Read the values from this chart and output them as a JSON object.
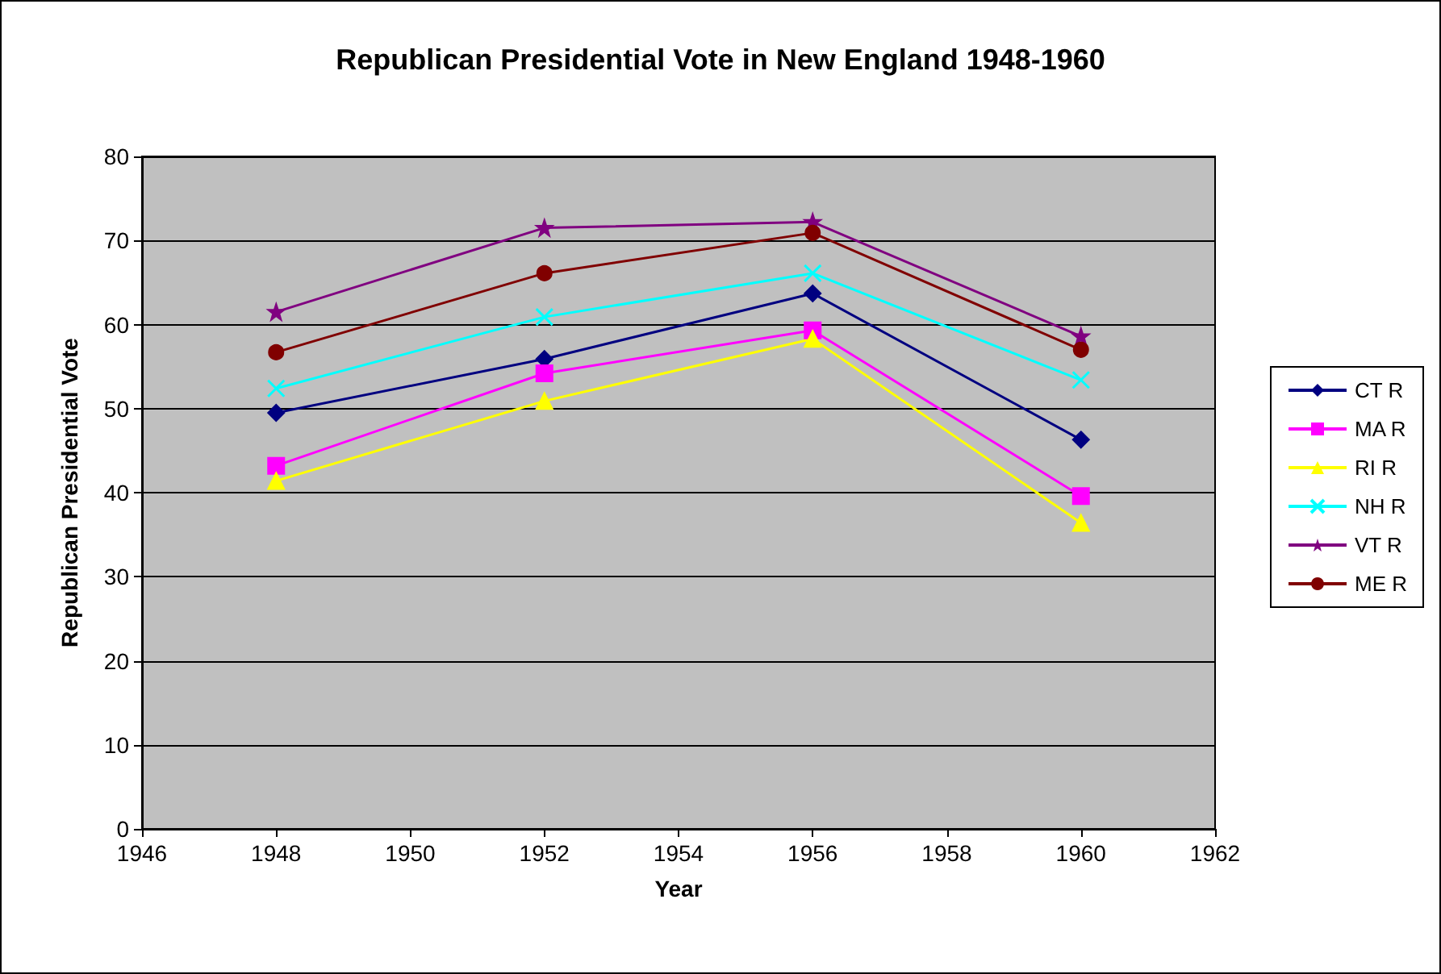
{
  "chart_data": {
    "type": "line",
    "title": "Republican Presidential Vote in New England 1948-1960",
    "xlabel": "Year",
    "ylabel": "Republican Presidential Vote",
    "x": [
      1948,
      1952,
      1956,
      1960
    ],
    "series": [
      {
        "name": "CT R",
        "color": "#000080",
        "marker": "diamond",
        "values": [
          49.5,
          55.9,
          63.7,
          46.3
        ]
      },
      {
        "name": "MA R",
        "color": "#ff00ff",
        "marker": "square",
        "values": [
          43.2,
          54.2,
          59.3,
          39.6
        ]
      },
      {
        "name": "RI R",
        "color": "#ffff00",
        "marker": "triangle",
        "values": [
          41.4,
          50.9,
          58.3,
          36.4
        ]
      },
      {
        "name": "NH R",
        "color": "#00ffff",
        "marker": "cross",
        "values": [
          52.4,
          60.9,
          66.1,
          53.4
        ]
      },
      {
        "name": "VT R",
        "color": "#800080",
        "marker": "star",
        "values": [
          61.5,
          71.5,
          72.2,
          58.6
        ]
      },
      {
        "name": "ME R",
        "color": "#800000",
        "marker": "circle",
        "values": [
          56.7,
          66.1,
          70.9,
          57.0
        ]
      }
    ],
    "xlim": [
      1946,
      1962
    ],
    "xticks": [
      1946,
      1948,
      1950,
      1952,
      1954,
      1956,
      1958,
      1960,
      1962
    ],
    "ylim": [
      0,
      80
    ],
    "yticks": [
      0,
      10,
      20,
      30,
      40,
      50,
      60,
      70,
      80
    ],
    "grid": "y",
    "legend": "right",
    "line_style": "solid"
  }
}
